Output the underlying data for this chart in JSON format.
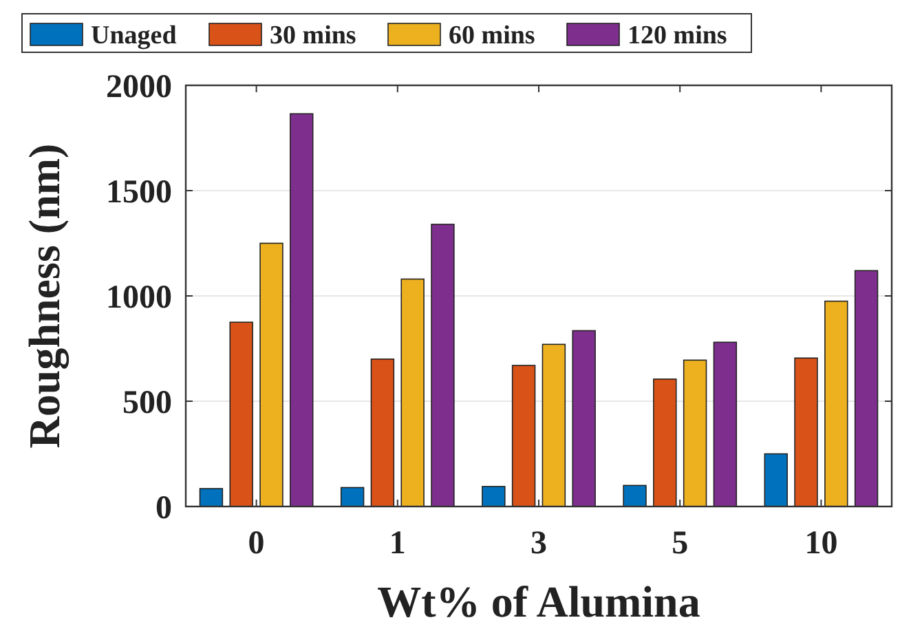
{
  "chart_data": {
    "type": "bar",
    "xlabel": "Wt% of Alumina",
    "ylabel": "Roughness (nm)",
    "categories": [
      "0",
      "1",
      "3",
      "5",
      "10"
    ],
    "series": [
      {
        "name": "Unaged",
        "color": "#0072bd",
        "values": [
          85,
          90,
          95,
          100,
          250
        ]
      },
      {
        "name": "30 mins",
        "color": "#d95319",
        "values": [
          875,
          700,
          670,
          605,
          705
        ]
      },
      {
        "name": "60 mins",
        "color": "#edb120",
        "values": [
          1250,
          1080,
          770,
          695,
          975
        ]
      },
      {
        "name": "120 mins",
        "color": "#7e2f8e",
        "values": [
          1865,
          1340,
          835,
          780,
          1120
        ]
      }
    ],
    "ylim": [
      0,
      2000
    ],
    "yticks": [
      0,
      500,
      1000,
      1500,
      2000
    ],
    "grid": "y",
    "legend": "top"
  }
}
